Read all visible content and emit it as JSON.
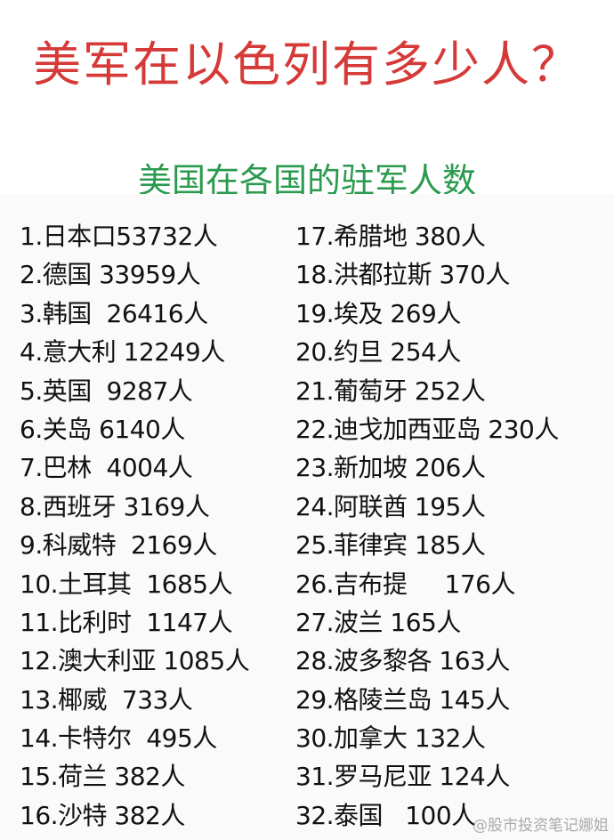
{
  "title": "美军在以色列有多少人？",
  "subtitle": "美国在各国的驻军人数",
  "left_column": [
    "1.日本口53732人",
    "2.德国 33959人",
    "3.韩国  26416人",
    "4.意大利 12249人",
    "5.英国  9287人",
    "6.关岛 6140人",
    "7.巴林  4004人",
    "8.西班牙 3169人",
    "9.科威特  2169人",
    "10.土耳其  1685人",
    "11.比利时  1147人",
    "12.澳大利亚 1085人",
    "13.椰威  733人",
    "14.卡特尔  495人",
    "15.荷兰 382人",
    "16.沙特 382人"
  ],
  "right_column": [
    "17.希腊地 380人",
    "18.洪都拉斯 370人",
    "19.埃及 269人",
    "20.约旦 254人",
    "21.葡萄牙 252人",
    "22.迪戈加西亚岛 230人",
    "23.新加坡 206人",
    "24.阿联酋 195人",
    "25.菲律宾 185人",
    "26.吉布提     176人",
    "27.波兰 165人",
    "28.波多黎各 163人",
    "29.格陵兰岛 145人",
    "30.加拿大 132人",
    "31.罗马尼亚 124人",
    "32.泰国   100人"
  ],
  "watermark": "@股市投资笔记娜姐",
  "colors": {
    "title": "#d63a38",
    "subtitle": "#2a9a4e"
  }
}
